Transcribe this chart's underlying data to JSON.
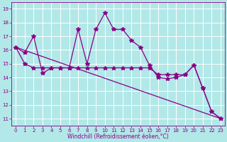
{
  "xlabel": "Windchill (Refroidissement éolien,°C)",
  "background_color": "#b2e8e8",
  "line_color": "#880088",
  "hours": [
    0,
    1,
    2,
    3,
    4,
    5,
    6,
    7,
    8,
    9,
    10,
    11,
    12,
    13,
    14,
    15,
    16,
    17,
    18,
    19,
    20,
    21,
    22,
    23
  ],
  "curve1": [
    16.2,
    15.8,
    17.0,
    14.3,
    14.7,
    14.7,
    14.7,
    17.5,
    15.0,
    17.5,
    18.7,
    17.5,
    17.5,
    16.7,
    16.2,
    14.9,
    14.0,
    13.9,
    14.0,
    14.2,
    14.9,
    13.2,
    11.5,
    11.0
  ],
  "curve2": [
    16.2,
    15.0,
    14.7,
    14.7,
    14.7,
    14.7,
    14.7,
    14.7,
    14.7,
    14.7,
    14.7,
    14.7,
    14.7,
    14.7,
    14.7,
    14.7,
    14.2,
    14.2,
    14.2,
    14.2,
    14.9,
    13.2,
    11.5,
    11.0
  ],
  "curve3_x": [
    0,
    23
  ],
  "curve3_y": [
    16.2,
    11.0
  ],
  "ylim": [
    10.5,
    19.5
  ],
  "yticks": [
    11,
    12,
    13,
    14,
    15,
    16,
    17,
    18,
    19
  ],
  "xticks": [
    0,
    1,
    2,
    3,
    4,
    5,
    6,
    7,
    8,
    9,
    10,
    11,
    12,
    13,
    14,
    15,
    16,
    17,
    18,
    19,
    20,
    21,
    22,
    23
  ],
  "grid_color": "#ffffff",
  "marker": "*",
  "marker_size": 4
}
